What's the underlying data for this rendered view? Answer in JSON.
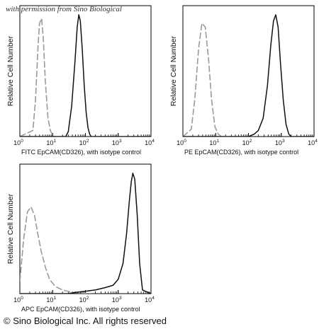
{
  "watermark": "with permission from Sino Biological",
  "copyright": "© Sino Biological Inc. All rights reserved",
  "colors": {
    "sample": "#111111",
    "isotype": "#9a9a9a",
    "axis": "#000000"
  },
  "chart_data": [
    {
      "type": "line",
      "panel": "top-left",
      "ylabel": "Relative Cell Number",
      "xlabel_prefix": "FITC",
      "xlabel": "EpCAM(CD326),  with isotype control",
      "xscale": "log",
      "xlim": [
        1,
        10000
      ],
      "xticks": [
        {
          "m": "10",
          "e": "0"
        },
        {
          "m": "10",
          "e": "1"
        },
        {
          "m": "10",
          "e": "2"
        },
        {
          "m": "10",
          "e": "3"
        },
        {
          "m": "10",
          "e": "4"
        }
      ],
      "ylim": [
        0,
        1
      ],
      "series": [
        {
          "role": "isotype",
          "style": "dashed-gray",
          "x": [
            1,
            2.5,
            3,
            3.6,
            4,
            4.6,
            5.2,
            6,
            7.2,
            8.5,
            10,
            11.5
          ],
          "y": [
            0,
            0.05,
            0.3,
            0.75,
            0.93,
            0.97,
            0.8,
            0.45,
            0.15,
            0.05,
            0.01,
            0
          ]
        },
        {
          "role": "sample",
          "style": "solid-black",
          "x": [
            1,
            25,
            30,
            38,
            48,
            56,
            63,
            70,
            80,
            92,
            105,
            120,
            135,
            150,
            10000
          ],
          "y": [
            0,
            0,
            0.04,
            0.25,
            0.62,
            0.9,
            1.0,
            0.95,
            0.72,
            0.42,
            0.2,
            0.07,
            0.02,
            0,
            0
          ]
        }
      ]
    },
    {
      "type": "line",
      "panel": "top-right",
      "ylabel": "Relative Cell Number",
      "xlabel_prefix": "PE",
      "xlabel": "EpCAM(CD326),  with isotype control",
      "xscale": "log",
      "xlim": [
        1,
        10000
      ],
      "xticks": [
        {
          "m": "10",
          "e": "0"
        },
        {
          "m": "10",
          "e": "1"
        },
        {
          "m": "10",
          "e": "2"
        },
        {
          "m": "10",
          "e": "3"
        },
        {
          "m": "10",
          "e": "4"
        }
      ],
      "ylim": [
        0,
        1
      ],
      "series": [
        {
          "role": "isotype",
          "style": "dashed-gray",
          "x": [
            1,
            1.8,
            2.3,
            3,
            3.8,
            4.8,
            6,
            7.5,
            9.5,
            12,
            15
          ],
          "y": [
            0,
            0.06,
            0.3,
            0.72,
            0.93,
            0.9,
            0.65,
            0.3,
            0.08,
            0.02,
            0
          ]
        },
        {
          "role": "sample",
          "style": "solid-black",
          "x": [
            1,
            100,
            150,
            200,
            280,
            380,
            480,
            580,
            680,
            800,
            950,
            1150,
            1400,
            1700,
            2000,
            10000
          ],
          "y": [
            0,
            0,
            0.02,
            0.05,
            0.15,
            0.42,
            0.75,
            0.95,
            1.0,
            0.9,
            0.6,
            0.3,
            0.1,
            0.02,
            0,
            0
          ]
        }
      ]
    },
    {
      "type": "line",
      "panel": "bottom-left",
      "ylabel": "Relative Cell Number",
      "xlabel_prefix": "APC",
      "xlabel": "EpCAM(CD326), with isotype control",
      "xscale": "log",
      "xlim": [
        1,
        10000
      ],
      "xticks": [
        {
          "m": "10",
          "e": "0"
        },
        {
          "m": "10",
          "e": "1"
        },
        {
          "m": "10",
          "e": "2"
        },
        {
          "m": "10",
          "e": "3"
        },
        {
          "m": "10",
          "e": "4"
        }
      ],
      "ylim": [
        0,
        1
      ],
      "series": [
        {
          "role": "isotype",
          "style": "dashed-gray",
          "x": [
            1,
            1.3,
            1.7,
            2.2,
            2.8,
            3.5,
            4.5,
            6,
            8,
            12,
            20,
            40,
            80,
            150
          ],
          "y": [
            0.1,
            0.45,
            0.68,
            0.72,
            0.65,
            0.5,
            0.35,
            0.22,
            0.12,
            0.06,
            0.03,
            0.01,
            0.005,
            0
          ]
        },
        {
          "role": "sample",
          "style": "solid-black",
          "x": [
            1,
            30,
            50,
            100,
            200,
            400,
            700,
            1000,
            1400,
            1800,
            2200,
            2500,
            2800,
            3200,
            3800,
            4500,
            5500,
            10000
          ],
          "y": [
            0,
            0,
            0.01,
            0.02,
            0.03,
            0.05,
            0.07,
            0.12,
            0.25,
            0.5,
            0.78,
            0.93,
            1.0,
            0.95,
            0.65,
            0.25,
            0.03,
            0
          ]
        }
      ]
    }
  ]
}
